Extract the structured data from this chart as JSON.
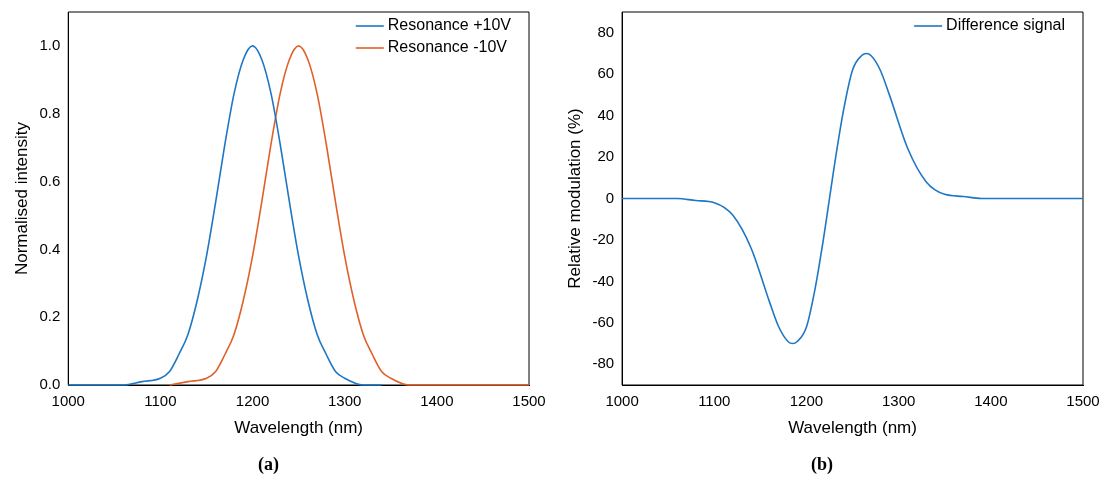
{
  "chart_data": [
    {
      "type": "line",
      "title": "(a)",
      "xlabel": "Wavelength (nm)",
      "ylabel": "Normalised intensity",
      "xlim": [
        1000,
        1500
      ],
      "xticks": [
        1000,
        1100,
        1200,
        1300,
        1400,
        1500
      ],
      "ylim": [
        0,
        1.1
      ],
      "yticks": [
        {
          "value": 0,
          "label": "0.0"
        },
        {
          "value": 0.2,
          "label": "0.2"
        },
        {
          "value": 0.4,
          "label": "0.4"
        },
        {
          "value": 0.6,
          "label": "0.6"
        },
        {
          "value": 0.8,
          "label": "0.8"
        },
        {
          "value": 1,
          "label": "1.0"
        }
      ],
      "grid": false,
      "legend": "top right",
      "marker": "none",
      "line_style": "solid",
      "series": [
        {
          "name": "Resonance +10V",
          "color": "#1f77c4",
          "x": [
            1000,
            1060,
            1080,
            1100,
            1110,
            1120,
            1130,
            1140,
            1150,
            1160,
            1170,
            1180,
            1190,
            1200,
            1210,
            1220,
            1230,
            1240,
            1250,
            1260,
            1270,
            1280,
            1290,
            1300,
            1320,
            1340
          ],
          "values": [
            0,
            0,
            0.01,
            0.02,
            0.04,
            0.09,
            0.15,
            0.25,
            0.38,
            0.54,
            0.71,
            0.86,
            0.96,
            1,
            0.96,
            0.86,
            0.71,
            0.54,
            0.38,
            0.25,
            0.15,
            0.09,
            0.04,
            0.02,
            0,
            0
          ]
        },
        {
          "name": "Resonance -10V",
          "color": "#e0602a",
          "x": [
            1110,
            1130,
            1150,
            1160,
            1170,
            1180,
            1190,
            1200,
            1210,
            1220,
            1230,
            1240,
            1250,
            1260,
            1270,
            1280,
            1290,
            1300,
            1310,
            1320,
            1330,
            1340,
            1350,
            1370,
            1390,
            1450,
            1500
          ],
          "values": [
            0,
            0.01,
            0.02,
            0.04,
            0.09,
            0.15,
            0.25,
            0.38,
            0.54,
            0.71,
            0.86,
            0.96,
            1,
            0.96,
            0.86,
            0.71,
            0.54,
            0.38,
            0.25,
            0.15,
            0.09,
            0.04,
            0.02,
            0,
            0,
            0,
            0
          ]
        }
      ]
    },
    {
      "type": "line",
      "title": "(b)",
      "xlabel": "Wavelength (nm)",
      "ylabel": "Relative modulation (%)",
      "xlim": [
        1000,
        1500
      ],
      "xticks": [
        1000,
        1100,
        1200,
        1300,
        1400,
        1500
      ],
      "ylim": [
        -90,
        90
      ],
      "yticks": [
        -80,
        -60,
        -40,
        -20,
        0,
        20,
        40,
        60,
        80
      ],
      "grid": false,
      "legend": "top right",
      "marker": "none",
      "line_style": "solid",
      "series": [
        {
          "name": "Difference signal",
          "color": "#1f77c4",
          "x": [
            1000,
            1060,
            1080,
            1100,
            1120,
            1140,
            1160,
            1170,
            1180,
            1185,
            1190,
            1200,
            1210,
            1220,
            1225,
            1230,
            1240,
            1250,
            1260,
            1265,
            1270,
            1280,
            1290,
            1310,
            1330,
            1350,
            1370,
            1390,
            1500
          ],
          "values": [
            0,
            0,
            -1,
            -2,
            -8,
            -24,
            -50,
            -62,
            -69,
            -70,
            -69,
            -62,
            -42,
            -15,
            0,
            15,
            42,
            62,
            69,
            70,
            69,
            62,
            50,
            24,
            8,
            2,
            1,
            0,
            0
          ]
        }
      ]
    }
  ]
}
